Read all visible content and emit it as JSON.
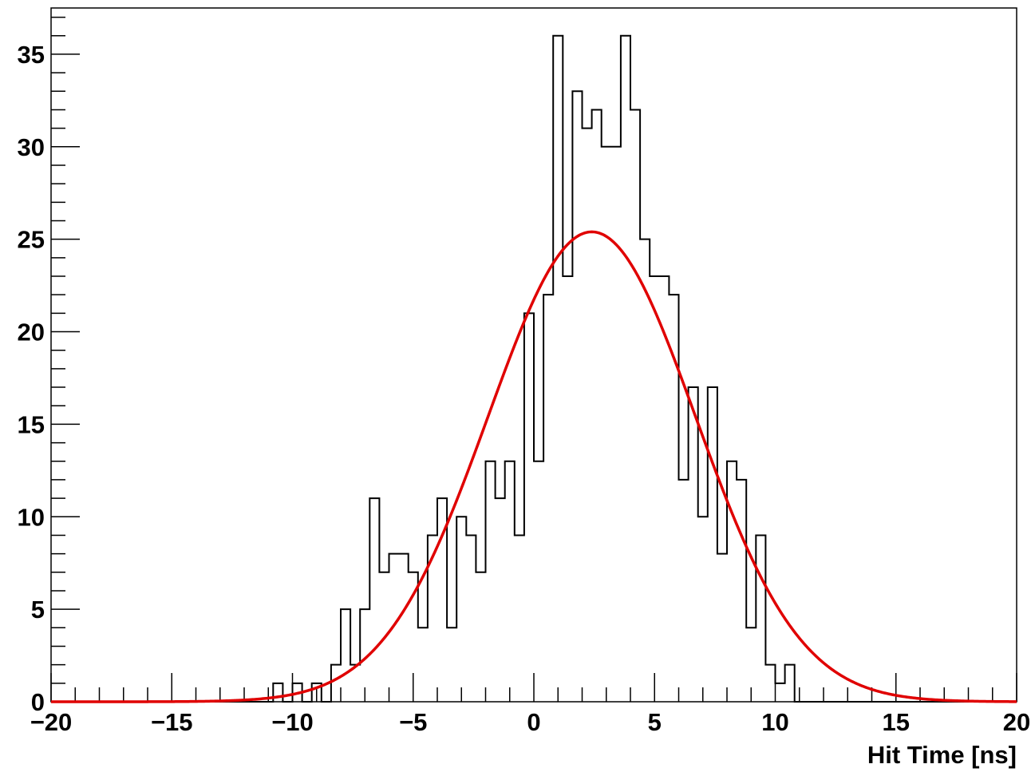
{
  "chart_data": {
    "type": "histogram",
    "xlabel": "Hit Time [ns]",
    "ylabel": "",
    "xlim": [
      -20,
      20
    ],
    "ylim": [
      0,
      37.5
    ],
    "x_ticks": [
      -20,
      -15,
      -10,
      -5,
      0,
      5,
      10,
      15,
      20
    ],
    "x_tick_labels": [
      "−20",
      "−15",
      "−10",
      "−5",
      "0",
      "5",
      "10",
      "15",
      "20"
    ],
    "y_ticks": [
      0,
      5,
      10,
      15,
      20,
      25,
      30,
      35
    ],
    "y_tick_labels": [
      "0",
      "5",
      "10",
      "15",
      "20",
      "25",
      "30",
      "35"
    ],
    "bin_width": 0.4,
    "bin_edges_start": -11.2,
    "bin_counts": [
      0,
      1,
      0,
      1,
      0,
      1,
      0,
      2,
      5,
      2,
      5,
      11,
      7,
      8,
      8,
      7,
      4,
      9,
      11,
      4,
      10,
      9,
      7,
      13,
      11,
      13,
      9,
      21,
      13,
      22,
      36,
      23,
      33,
      31,
      32,
      30,
      30,
      36,
      32,
      25,
      23,
      23,
      22,
      12,
      17,
      10,
      17,
      8,
      13,
      12,
      4,
      9,
      2,
      1,
      2
    ],
    "series": [
      {
        "name": "",
        "kind": "step",
        "color": "#000000"
      },
      {
        "name": "",
        "kind": "gaussian-fit",
        "color": "#e00000",
        "amplitude": 25.4,
        "mean": 2.4,
        "sigma": 4.3
      }
    ],
    "grid": false,
    "legend": "none"
  }
}
